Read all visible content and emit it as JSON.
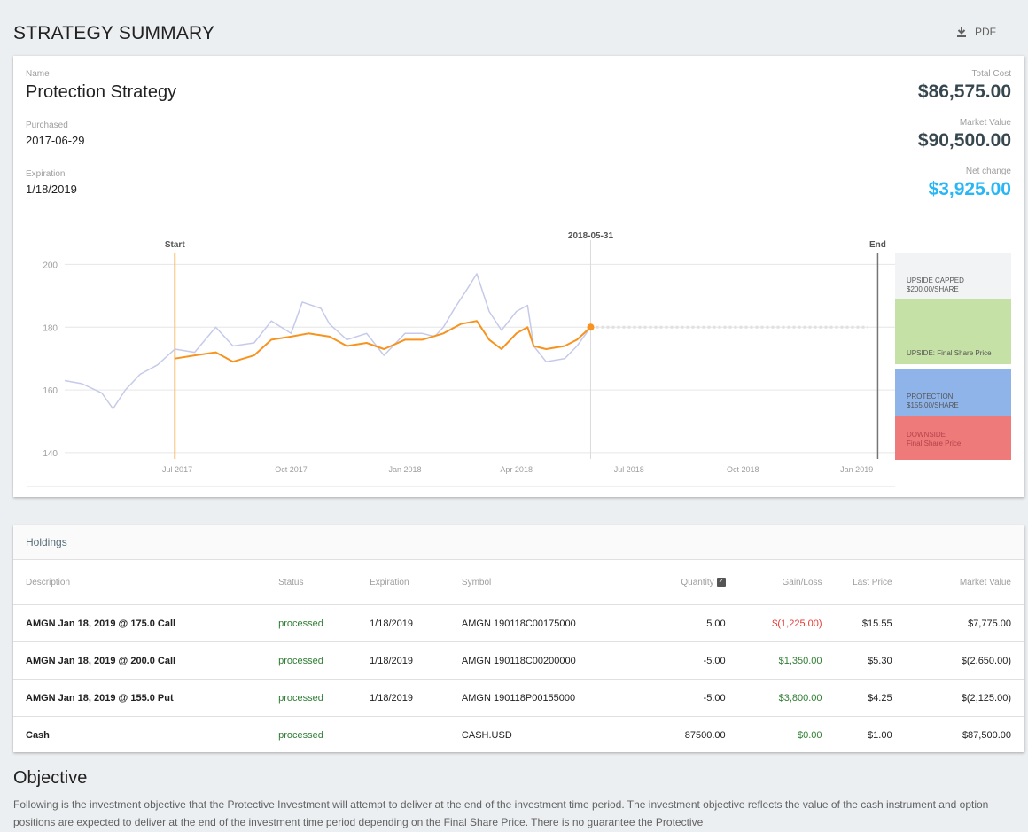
{
  "page": {
    "title": "STRATEGY SUMMARY",
    "pdf_label": "PDF"
  },
  "summary": {
    "name_label": "Name",
    "name": "Protection Strategy",
    "purchased_label": "Purchased",
    "purchased": "2017-06-29",
    "expiration_label": "Expiration",
    "expiration": "1/18/2019",
    "total_cost_label": "Total Cost",
    "total_cost": "$86,575.00",
    "market_value_label": "Market Value",
    "market_value": "$90,500.00",
    "net_change_label": "Net change",
    "net_change": "$3,925.00"
  },
  "chart": {
    "start_label": "Start",
    "end_label": "End",
    "current_label": "2018-05-31",
    "y_ticks": [
      "200",
      "180",
      "160",
      "140"
    ],
    "x_ticks": [
      "Jul 2017",
      "Oct 2017",
      "Jan 2018",
      "Apr 2018",
      "Jul 2018",
      "Oct 2018",
      "Jan 2019"
    ],
    "zones": {
      "upside_capped": [
        "UPSIDE CAPPED",
        "$200.00/SHARE"
      ],
      "upside": [
        "UPSIDE: Final Share Price"
      ],
      "protection": [
        "PROTECTION",
        "$155.00/SHARE"
      ],
      "downside": [
        "DOWNSIDE",
        "Final Share Price"
      ]
    },
    "colors": {
      "strategy": "#f7931e",
      "stock": "#c5cae9",
      "start_line": "#f9c37a",
      "upside_capped": "#f2f3f5",
      "upside": "#c5e1a5",
      "protection": "#8fb4ea",
      "downside": "#ef7a7a"
    }
  },
  "chart_data": {
    "type": "line",
    "x_range": [
      "2017-04-01",
      "2019-02-01"
    ],
    "ylim": [
      138,
      210
    ],
    "markers": {
      "start": "2017-06-29",
      "current": "2018-05-31",
      "end": "2019-01-18"
    },
    "series": [
      {
        "values": [
          [
            "2017-04-01",
            163
          ],
          [
            "2017-04-15",
            162
          ],
          [
            "2017-05-01",
            159
          ],
          [
            "2017-05-10",
            154
          ],
          [
            "2017-05-20",
            160
          ],
          [
            "2017-06-01",
            165
          ],
          [
            "2017-06-15",
            168
          ],
          [
            "2017-06-29",
            173
          ],
          [
            "2017-07-15",
            172
          ],
          [
            "2017-08-01",
            180
          ],
          [
            "2017-08-15",
            174
          ],
          [
            "2017-09-01",
            175
          ],
          [
            "2017-09-15",
            182
          ],
          [
            "2017-10-01",
            178
          ],
          [
            "2017-10-10",
            188
          ],
          [
            "2017-10-25",
            186
          ],
          [
            "2017-11-01",
            181
          ],
          [
            "2017-11-15",
            176
          ],
          [
            "2017-12-01",
            178
          ],
          [
            "2017-12-15",
            171
          ],
          [
            "2018-01-01",
            178
          ],
          [
            "2018-01-15",
            178
          ],
          [
            "2018-01-25",
            177
          ],
          [
            "2018-02-01",
            180
          ],
          [
            "2018-02-10",
            186
          ],
          [
            "2018-02-20",
            192
          ],
          [
            "2018-02-28",
            197
          ],
          [
            "2018-03-10",
            185
          ],
          [
            "2018-03-20",
            179
          ],
          [
            "2018-04-01",
            185
          ],
          [
            "2018-04-10",
            187
          ],
          [
            "2018-04-15",
            174
          ],
          [
            "2018-04-25",
            169
          ],
          [
            "2018-05-10",
            170
          ],
          [
            "2018-05-20",
            174
          ],
          [
            "2018-05-31",
            180
          ]
        ]
      },
      {
        "values": [
          [
            "2017-06-29",
            170
          ],
          [
            "2017-07-15",
            171
          ],
          [
            "2017-08-01",
            172
          ],
          [
            "2017-08-15",
            169
          ],
          [
            "2017-09-01",
            171
          ],
          [
            "2017-09-15",
            176
          ],
          [
            "2017-10-01",
            177
          ],
          [
            "2017-10-15",
            178
          ],
          [
            "2017-11-01",
            177
          ],
          [
            "2017-11-15",
            174
          ],
          [
            "2017-12-01",
            175
          ],
          [
            "2017-12-15",
            173
          ],
          [
            "2018-01-01",
            176
          ],
          [
            "2018-01-15",
            176
          ],
          [
            "2018-02-01",
            178
          ],
          [
            "2018-02-15",
            181
          ],
          [
            "2018-02-28",
            182
          ],
          [
            "2018-03-10",
            176
          ],
          [
            "2018-03-20",
            173
          ],
          [
            "2018-04-01",
            178
          ],
          [
            "2018-04-10",
            180
          ],
          [
            "2018-04-15",
            174
          ],
          [
            "2018-04-25",
            173
          ],
          [
            "2018-05-10",
            174
          ],
          [
            "2018-05-20",
            176
          ],
          [
            "2018-05-31",
            180
          ]
        ]
      }
    ]
  },
  "holdings": {
    "title": "Holdings",
    "columns": [
      "Description",
      "Status",
      "Expiration",
      "Symbol",
      "Quantity",
      "Gain/Loss",
      "Last Price",
      "Market Value"
    ],
    "rows": [
      {
        "description": "AMGN Jan 18, 2019 @ 175.0 Call",
        "status": "processed",
        "expiration": "1/18/2019",
        "symbol": "AMGN 190118C00175000",
        "quantity": "5.00",
        "gain": "$(1,225.00)",
        "last": "$15.55",
        "mv": "$7,775.00"
      },
      {
        "description": "AMGN Jan 18, 2019 @ 200.0 Call",
        "status": "processed",
        "expiration": "1/18/2019",
        "symbol": "AMGN 190118C00200000",
        "quantity": "-5.00",
        "gain": "$1,350.00",
        "last": "$5.30",
        "mv": "$(2,650.00)"
      },
      {
        "description": "AMGN Jan 18, 2019 @ 155.0 Put",
        "status": "processed",
        "expiration": "1/18/2019",
        "symbol": "AMGN 190118P00155000",
        "quantity": "-5.00",
        "gain": "$3,800.00",
        "last": "$4.25",
        "mv": "$(2,125.00)"
      },
      {
        "description": "Cash",
        "status": "processed",
        "expiration": "",
        "symbol": "CASH.USD",
        "quantity": "87500.00",
        "gain": "$0.00",
        "last": "$1.00",
        "mv": "$87,500.00"
      }
    ]
  },
  "objective": {
    "title": "Objective",
    "text": "Following is the investment objective that the Protective Investment will attempt to deliver at the end of the investment time period. The investment objective reflects the value of the cash instrument and option positions are expected to deliver at the end of the investment time period depending on the Final Share Price. There is no guarantee the Protective"
  }
}
